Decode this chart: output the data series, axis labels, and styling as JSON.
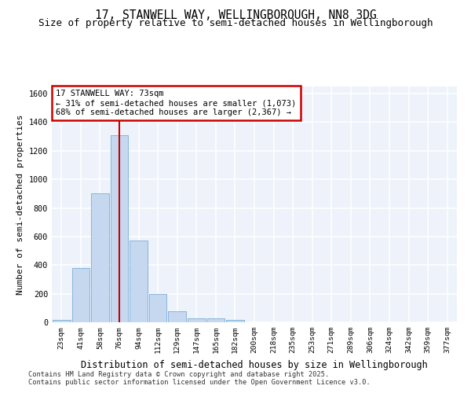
{
  "title": "17, STANWELL WAY, WELLINGBOROUGH, NN8 3DG",
  "subtitle": "Size of property relative to semi-detached houses in Wellingborough",
  "xlabel": "Distribution of semi-detached houses by size in Wellingborough",
  "ylabel": "Number of semi-detached properties",
  "footnote1": "Contains HM Land Registry data © Crown copyright and database right 2025.",
  "footnote2": "Contains public sector information licensed under the Open Government Licence v3.0.",
  "bins": [
    "23sqm",
    "41sqm",
    "58sqm",
    "76sqm",
    "94sqm",
    "112sqm",
    "129sqm",
    "147sqm",
    "165sqm",
    "182sqm",
    "200sqm",
    "218sqm",
    "235sqm",
    "253sqm",
    "271sqm",
    "289sqm",
    "306sqm",
    "324sqm",
    "342sqm",
    "359sqm",
    "377sqm"
  ],
  "values": [
    15,
    380,
    900,
    1310,
    570,
    200,
    75,
    25,
    25,
    15,
    0,
    0,
    0,
    0,
    0,
    0,
    0,
    0,
    0,
    0,
    0
  ],
  "bar_color": "#c5d8f0",
  "bar_edge_color": "#7aaed6",
  "vline_x_index": 3,
  "vline_color": "#cc0000",
  "annotation_title": "17 STANWELL WAY: 73sqm",
  "annotation_line1": "← 31% of semi-detached houses are smaller (1,073)",
  "annotation_line2": "68% of semi-detached houses are larger (2,367) →",
  "annotation_box_color": "white",
  "annotation_box_edge": "#cc0000",
  "ylim": [
    0,
    1650
  ],
  "yticks": [
    0,
    200,
    400,
    600,
    800,
    1000,
    1200,
    1400,
    1600
  ],
  "bg_color": "#ffffff",
  "plot_bg_color": "#edf2fb",
  "grid_color": "#ffffff",
  "title_fontsize": 10.5,
  "subtitle_fontsize": 9,
  "tick_fontsize": 6.8,
  "ylabel_fontsize": 8,
  "xlabel_fontsize": 8.5,
  "footnote_fontsize": 6.2
}
